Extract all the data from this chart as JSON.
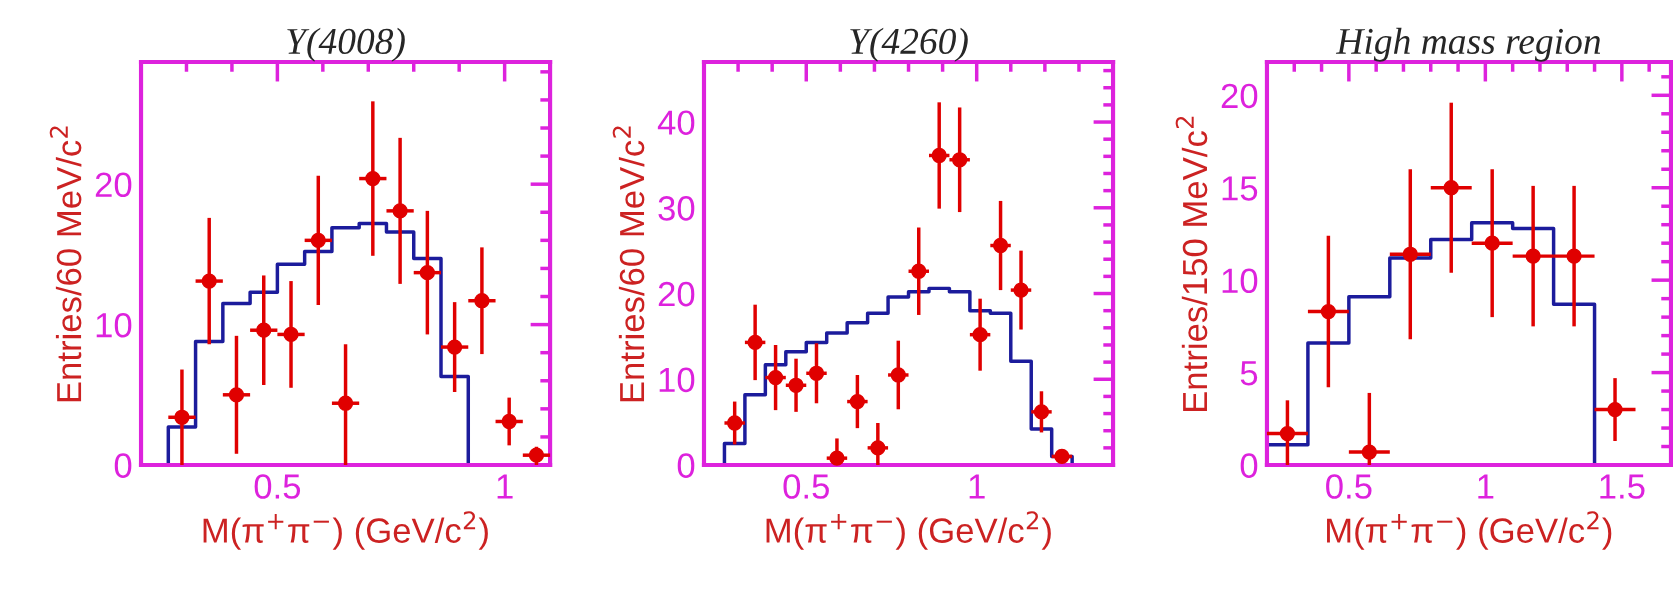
{
  "chart_data": [
    {
      "type": "scatter",
      "title": "Y(4008)",
      "xlabel": "M(π$^{+}$π$^{−}$) (GeV/c$^{2}$)",
      "ylabel": "Entries/60 MeV/c$^{2}$",
      "xlim": [
        0.2,
        1.1
      ],
      "ylim": [
        0,
        28.7
      ],
      "xticks": [
        {
          "value": 0.3,
          "label": null
        },
        {
          "value": 0.4,
          "label": null
        },
        0.5,
        {
          "value": 0.6,
          "label": null
        },
        {
          "value": 0.7,
          "label": null
        },
        {
          "value": 0.8,
          "label": null
        },
        {
          "value": 0.9,
          "label": null
        },
        1
      ],
      "yticks": [
        0,
        {
          "value": 2,
          "label": null
        },
        {
          "value": 4,
          "label": null
        },
        {
          "value": 6,
          "label": null
        },
        {
          "value": 8,
          "label": null
        },
        10,
        {
          "value": 12,
          "label": null
        },
        {
          "value": 14,
          "label": null
        },
        {
          "value": 16,
          "label": null
        },
        {
          "value": 18,
          "label": null
        },
        20,
        {
          "value": 22,
          "label": null
        },
        {
          "value": 24,
          "label": null
        },
        {
          "value": 26,
          "label": null
        },
        {
          "value": 28,
          "label": null
        }
      ],
      "series": [
        {
          "type": "step",
          "color": "#1c1c9c",
          "x": [
            0.2,
            0.26,
            0.32,
            0.38,
            0.44,
            0.5,
            0.56,
            0.62,
            0.68,
            0.74,
            0.8,
            0.86,
            0.92,
            1.1
          ],
          "values": [
            0,
            2.7,
            8.8,
            11.5,
            12.3,
            14.3,
            15.2,
            16.9,
            17.2,
            16.6,
            14.7,
            6.3,
            0,
            0
          ]
        },
        {
          "color": "#e00000",
          "marker": "circle",
          "x": [
            0.29,
            0.35,
            0.41,
            0.47,
            0.53,
            0.59,
            0.65,
            0.71,
            0.77,
            0.83,
            0.89,
            0.95,
            1.01,
            1.07
          ],
          "values": [
            3.4,
            13.1,
            5.0,
            9.6,
            9.3,
            16.0,
            4.4,
            20.4,
            18.1,
            13.7,
            8.4,
            11.7,
            3.1,
            0.7
          ],
          "errors": [
            [
              0,
              6.8
            ],
            4.5,
            4.2,
            3.9,
            3.8,
            4.6,
            [
              0,
              8.6
            ],
            5.5,
            5.2,
            4.4,
            3.2,
            3.8,
            1.7,
            [
              0,
              1.3
            ]
          ],
          "xerrors": [
            0.03,
            0.03,
            0.03,
            0.03,
            0.03,
            0.03,
            0.03,
            0.03,
            0.03,
            0.03,
            0.03,
            0.03,
            0.03,
            0.03
          ]
        }
      ]
    },
    {
      "type": "scatter",
      "title": "Y(4260)",
      "xlabel": "M(π$^{+}$π$^{−}$) (GeV/c$^{2}$)",
      "ylabel": "Entries/60 MeV/c$^{2}$",
      "xlim": [
        0.2,
        1.4
      ],
      "ylim": [
        0,
        47
      ],
      "xticks": [
        {
          "value": 0.3,
          "label": null
        },
        {
          "value": 0.4,
          "label": null
        },
        0.5,
        {
          "value": 0.6,
          "label": null
        },
        {
          "value": 0.7,
          "label": null
        },
        {
          "value": 0.8,
          "label": null
        },
        {
          "value": 0.9,
          "label": null
        },
        1,
        {
          "value": 1.1,
          "label": null
        },
        {
          "value": 1.2,
          "label": null
        },
        {
          "value": 1.3,
          "label": null
        }
      ],
      "yticks": [
        0,
        {
          "value": 2,
          "label": null
        },
        {
          "value": 4,
          "label": null
        },
        {
          "value": 6,
          "label": null
        },
        {
          "value": 8,
          "label": null
        },
        10,
        {
          "value": 12,
          "label": null
        },
        {
          "value": 14,
          "label": null
        },
        {
          "value": 16,
          "label": null
        },
        {
          "value": 18,
          "label": null
        },
        20,
        {
          "value": 22,
          "label": null
        },
        {
          "value": 24,
          "label": null
        },
        {
          "value": 26,
          "label": null
        },
        {
          "value": 28,
          "label": null
        },
        30,
        {
          "value": 32,
          "label": null
        },
        {
          "value": 34,
          "label": null
        },
        {
          "value": 36,
          "label": null
        },
        {
          "value": 38,
          "label": null
        },
        40,
        {
          "value": 42,
          "label": null
        },
        {
          "value": 44,
          "label": null
        },
        {
          "value": 46,
          "label": null
        }
      ],
      "series": [
        {
          "type": "step",
          "color": "#1c1c9c",
          "x": [
            0.2,
            0.26,
            0.32,
            0.38,
            0.44,
            0.5,
            0.56,
            0.62,
            0.68,
            0.74,
            0.8,
            0.86,
            0.92,
            0.98,
            1.04,
            1.1,
            1.16,
            1.22,
            1.28,
            1.4
          ],
          "values": [
            0,
            2.5,
            8.2,
            11.7,
            13.2,
            14.3,
            15.4,
            16.6,
            17.7,
            19.6,
            20.2,
            20.6,
            20.2,
            18.0,
            17.7,
            12.1,
            4.2,
            1.0,
            0,
            0
          ]
        },
        {
          "color": "#e00000",
          "marker": "circle",
          "x": [
            0.29,
            0.35,
            0.41,
            0.47,
            0.53,
            0.59,
            0.65,
            0.71,
            0.77,
            0.83,
            0.89,
            0.95,
            1.01,
            1.07,
            1.13,
            1.19,
            1.25
          ],
          "values": [
            4.9,
            14.3,
            10.2,
            9.3,
            10.7,
            0.8,
            7.4,
            2.0,
            10.5,
            22.6,
            36.1,
            35.6,
            15.2,
            25.6,
            20.4,
            6.2,
            1.0
          ],
          "errors": [
            2.5,
            4.4,
            3.8,
            3.1,
            3.5,
            [
              0,
              3.1
            ],
            3.1,
            [
              0,
              4.9
            ],
            4.0,
            5.1,
            6.2,
            6.1,
            4.2,
            5.2,
            4.6,
            2.4,
            0.5
          ],
          "xerrors": [
            0.03,
            0.03,
            0.03,
            0.03,
            0.03,
            0.03,
            0.03,
            0.03,
            0.03,
            0.03,
            0.03,
            0.03,
            0.03,
            0.03,
            0.03,
            0.03,
            0.03
          ]
        }
      ]
    },
    {
      "type": "scatter",
      "title": "High mass region",
      "xlabel": "M(π$^{+}$π$^{−}$) (GeV/c$^{2}$)",
      "ylabel": "Entries/150 MeV/c$^{2}$",
      "xlim": [
        0.2,
        1.68
      ],
      "ylim": [
        0,
        21.8
      ],
      "xticks": [
        {
          "value": 0.3,
          "label": null
        },
        {
          "value": 0.4,
          "label": null
        },
        0.5,
        {
          "value": 0.6,
          "label": null
        },
        {
          "value": 0.7,
          "label": null
        },
        {
          "value": 0.8,
          "label": null
        },
        {
          "value": 0.9,
          "label": null
        },
        1,
        {
          "value": 1.1,
          "label": null
        },
        {
          "value": 1.2,
          "label": null
        },
        {
          "value": 1.3,
          "label": null
        },
        {
          "value": 1.4,
          "label": null
        },
        1.5,
        {
          "value": 1.6,
          "label": null
        }
      ],
      "yticks": [
        0,
        {
          "value": 1,
          "label": null
        },
        {
          "value": 2,
          "label": null
        },
        {
          "value": 3,
          "label": null
        },
        {
          "value": 4,
          "label": null
        },
        5,
        {
          "value": 6,
          "label": null
        },
        {
          "value": 7,
          "label": null
        },
        {
          "value": 8,
          "label": null
        },
        {
          "value": 9,
          "label": null
        },
        10,
        {
          "value": 11,
          "label": null
        },
        {
          "value": 12,
          "label": null
        },
        {
          "value": 13,
          "label": null
        },
        {
          "value": 14,
          "label": null
        },
        15,
        {
          "value": 16,
          "label": null
        },
        {
          "value": 17,
          "label": null
        },
        {
          "value": 18,
          "label": null
        },
        {
          "value": 19,
          "label": null
        },
        20,
        {
          "value": 21,
          "label": null
        }
      ],
      "series": [
        {
          "type": "step",
          "color": "#1c1c9c",
          "x": [
            0.2,
            0.35,
            0.5,
            0.65,
            0.8,
            0.95,
            1.1,
            1.25,
            1.4,
            1.68
          ],
          "values": [
            1.1,
            6.6,
            9.1,
            11.2,
            12.2,
            13.1,
            12.8,
            8.7,
            0,
            0
          ]
        },
        {
          "color": "#e00000",
          "marker": "circle",
          "x": [
            0.275,
            0.425,
            0.575,
            0.725,
            0.875,
            1.025,
            1.175,
            1.325,
            1.475
          ],
          "values": [
            1.7,
            8.3,
            0.7,
            11.4,
            15.0,
            12.0,
            11.3,
            11.3,
            3.0
          ],
          "errors": [
            [
              0,
              3.5
            ],
            4.1,
            [
              0,
              3.9
            ],
            4.6,
            4.6,
            4.0,
            3.8,
            3.8,
            1.7
          ],
          "xerrors": [
            0.075,
            0.075,
            0.075,
            0.075,
            0.075,
            0.075,
            0.075,
            0.075,
            0.075
          ]
        }
      ]
    }
  ]
}
